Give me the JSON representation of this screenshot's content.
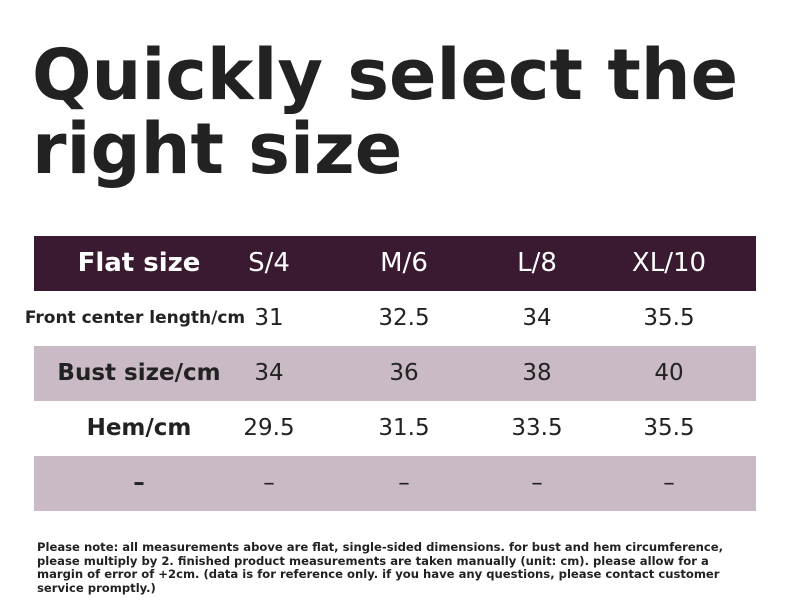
{
  "title": {
    "line1": "Quickly select the",
    "line2": "right size"
  },
  "table": {
    "header": {
      "label": "Flat size",
      "cols": [
        "S/4",
        "M/6",
        "L/8",
        "XL/10"
      ]
    },
    "rows": [
      {
        "label": "Front center length/cm",
        "values": [
          "31",
          "32.5",
          "34",
          "35.5"
        ]
      },
      {
        "label": "Bust size/cm",
        "values": [
          "34",
          "36",
          "38",
          "40"
        ]
      },
      {
        "label": "Hem/cm",
        "values": [
          "29.5",
          "31.5",
          "33.5",
          "35.5"
        ]
      },
      {
        "label": "–",
        "values": [
          "–",
          "–",
          "–",
          "–"
        ]
      }
    ]
  },
  "note": "Please note: all measurements above are flat, single-sided dimensions. for bust and hem circumference, please multiply by 2. finished product measurements are taken manually (unit: cm). please allow for a margin of error of +2cm. (data is for reference only. if you have any questions, please contact customer service promptly.)",
  "colors": {
    "header_bg": "#3a1a30",
    "shaded_row": "#c9bac5",
    "text": "#222222"
  }
}
